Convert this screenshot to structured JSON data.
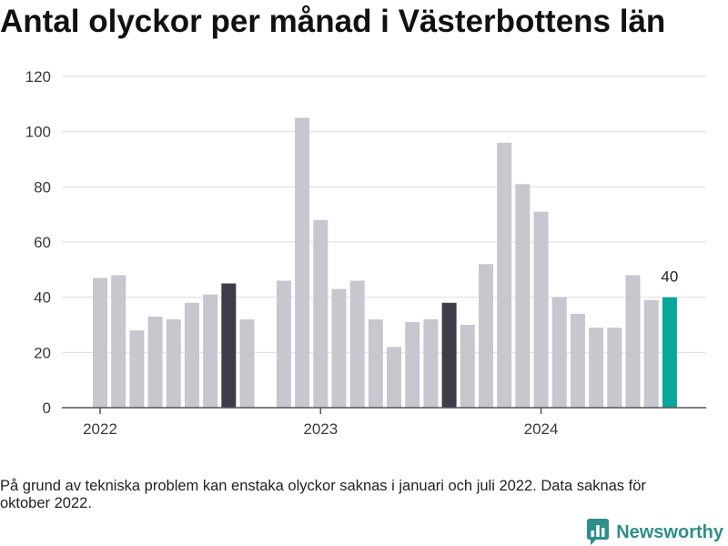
{
  "chart_data": {
    "type": "bar",
    "title": "Antal olyckor per månad i Västerbottens län",
    "x": [
      "2022-01",
      "2022-02",
      "2022-03",
      "2022-04",
      "2022-05",
      "2022-06",
      "2022-07",
      "2022-08",
      "2022-09",
      "2022-10",
      "2022-11",
      "2022-12",
      "2023-01",
      "2023-02",
      "2023-03",
      "2023-04",
      "2023-05",
      "2023-06",
      "2023-07",
      "2023-08",
      "2023-09",
      "2023-10",
      "2023-11",
      "2023-12",
      "2024-01",
      "2024-02",
      "2024-03",
      "2024-04",
      "2024-05",
      "2024-06",
      "2024-07",
      "2024-08"
    ],
    "values": [
      47,
      48,
      28,
      33,
      32,
      38,
      41,
      45,
      32,
      null,
      46,
      105,
      68,
      43,
      46,
      32,
      22,
      31,
      32,
      38,
      30,
      52,
      96,
      81,
      71,
      40,
      34,
      29,
      29,
      48,
      39,
      40
    ],
    "ylim": [
      0,
      120
    ],
    "yticks": [
      0,
      20,
      40,
      60,
      80,
      100,
      120
    ],
    "xticks": [
      "2022",
      "2023",
      "2024"
    ],
    "grid": true,
    "colors": {
      "bar": "#c8c6ce",
      "highlight": {
        "2022-08": "#3e3c49",
        "2023-08": "#3e3c49",
        "2024-08": "#07a79b"
      }
    },
    "data_labels": [
      {
        "x": "2024-08",
        "value": 40
      }
    ]
  },
  "footnote": "På grund av tekniska problem kan enstaka olyckor saknas i januari och juli 2022. Data saknas för oktober 2022.",
  "brand": {
    "name": "Newsworthy",
    "icon": "newsworthy-logo-icon",
    "color": "#2f8e89"
  }
}
